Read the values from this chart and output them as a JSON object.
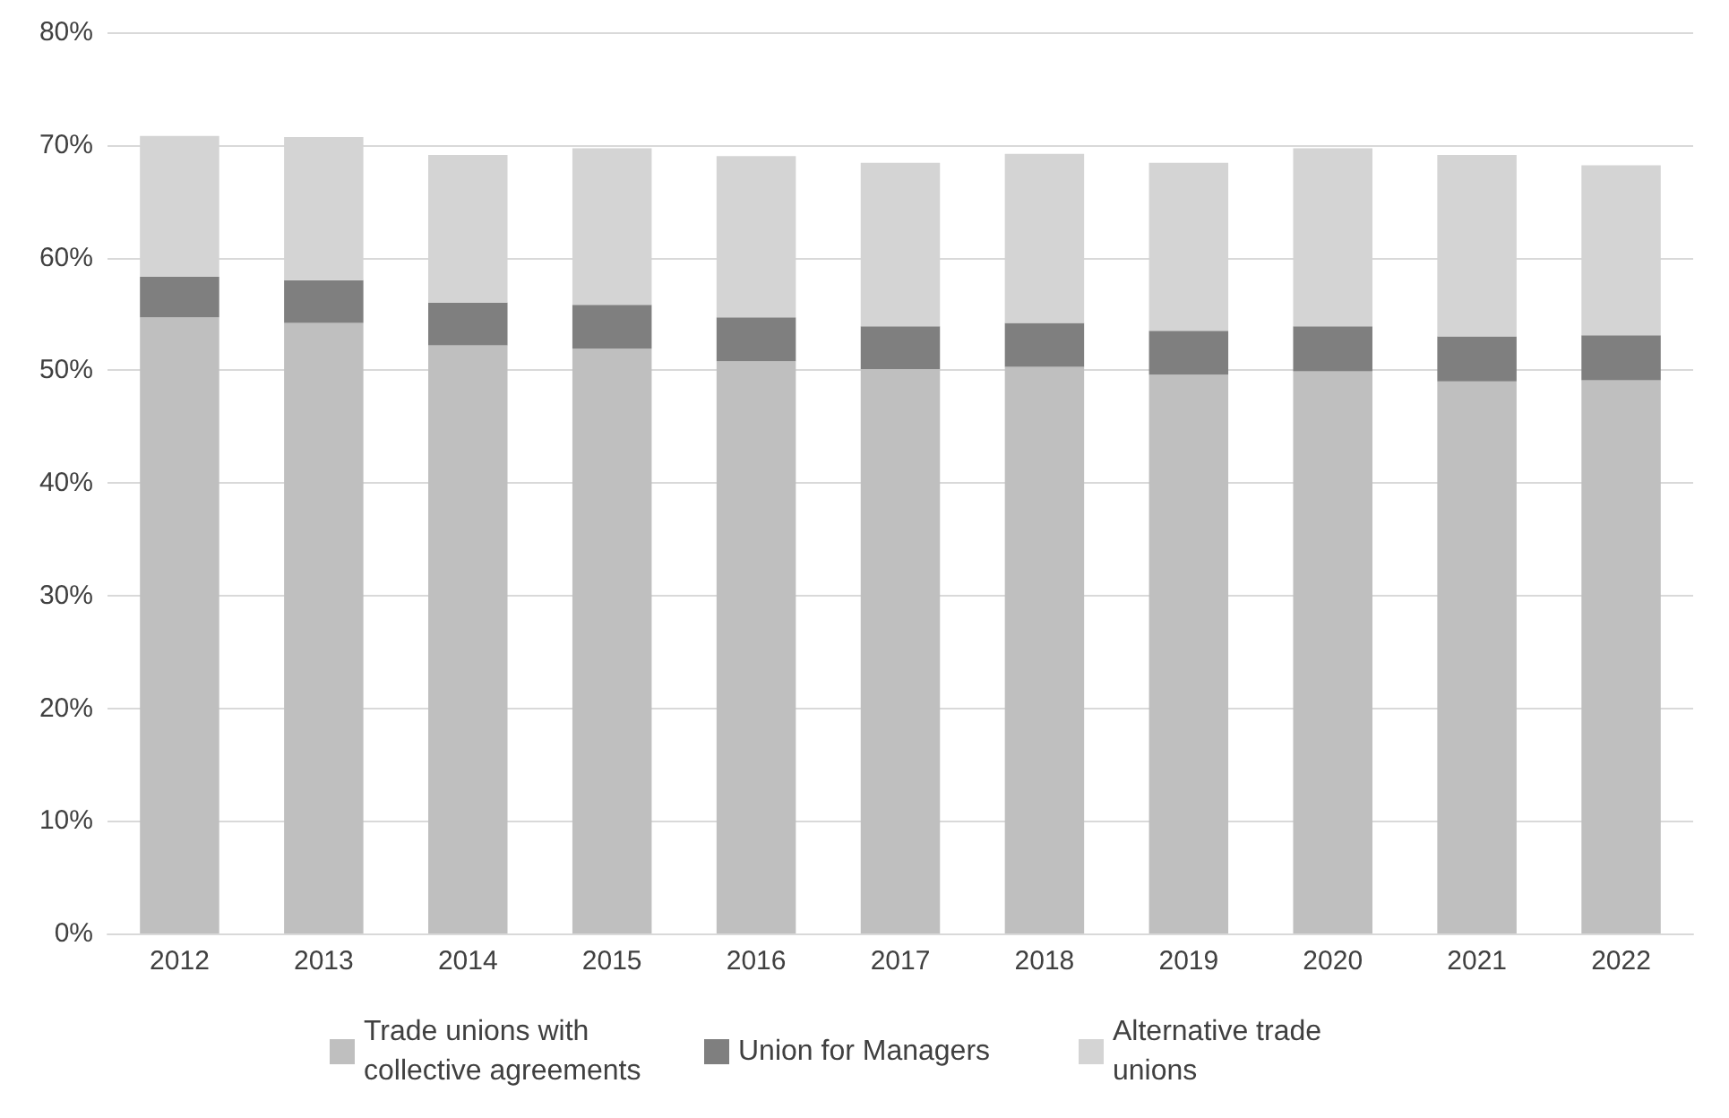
{
  "chart_data": {
    "type": "bar",
    "stacked": true,
    "categories": [
      "2012",
      "2013",
      "2014",
      "2015",
      "2016",
      "2017",
      "2018",
      "2019",
      "2020",
      "2021",
      "2022"
    ],
    "series": [
      {
        "name": "Trade unions with collective agreements",
        "color": "#bfbfbf",
        "values": [
          54.7,
          54.2,
          52.2,
          51.9,
          50.8,
          50.1,
          50.3,
          49.6,
          49.9,
          49.0,
          49.1
        ]
      },
      {
        "name": "Union for Managers",
        "color": "#7f7f7f",
        "values": [
          3.6,
          3.8,
          3.8,
          3.9,
          3.9,
          3.8,
          3.9,
          3.9,
          4.0,
          4.0,
          4.0
        ]
      },
      {
        "name": "Alternative trade unions",
        "color": "#d4d4d4",
        "values": [
          12.5,
          12.7,
          13.1,
          13.9,
          14.3,
          14.5,
          15.0,
          14.9,
          15.8,
          16.1,
          15.1
        ]
      }
    ],
    "ylim": [
      0,
      80
    ],
    "yticks": [
      {
        "value": 0,
        "label": "0%"
      },
      {
        "value": 10,
        "label": "10%"
      },
      {
        "value": 20,
        "label": "20%"
      },
      {
        "value": 30,
        "label": "30%"
      },
      {
        "value": 40,
        "label": "40%"
      },
      {
        "value": 50,
        "label": "50%"
      },
      {
        "value": 60,
        "label": "60%"
      },
      {
        "value": 70,
        "label": "70%"
      },
      {
        "value": 80,
        "label": "80%"
      }
    ],
    "grid": "y",
    "legend": "bottom"
  }
}
